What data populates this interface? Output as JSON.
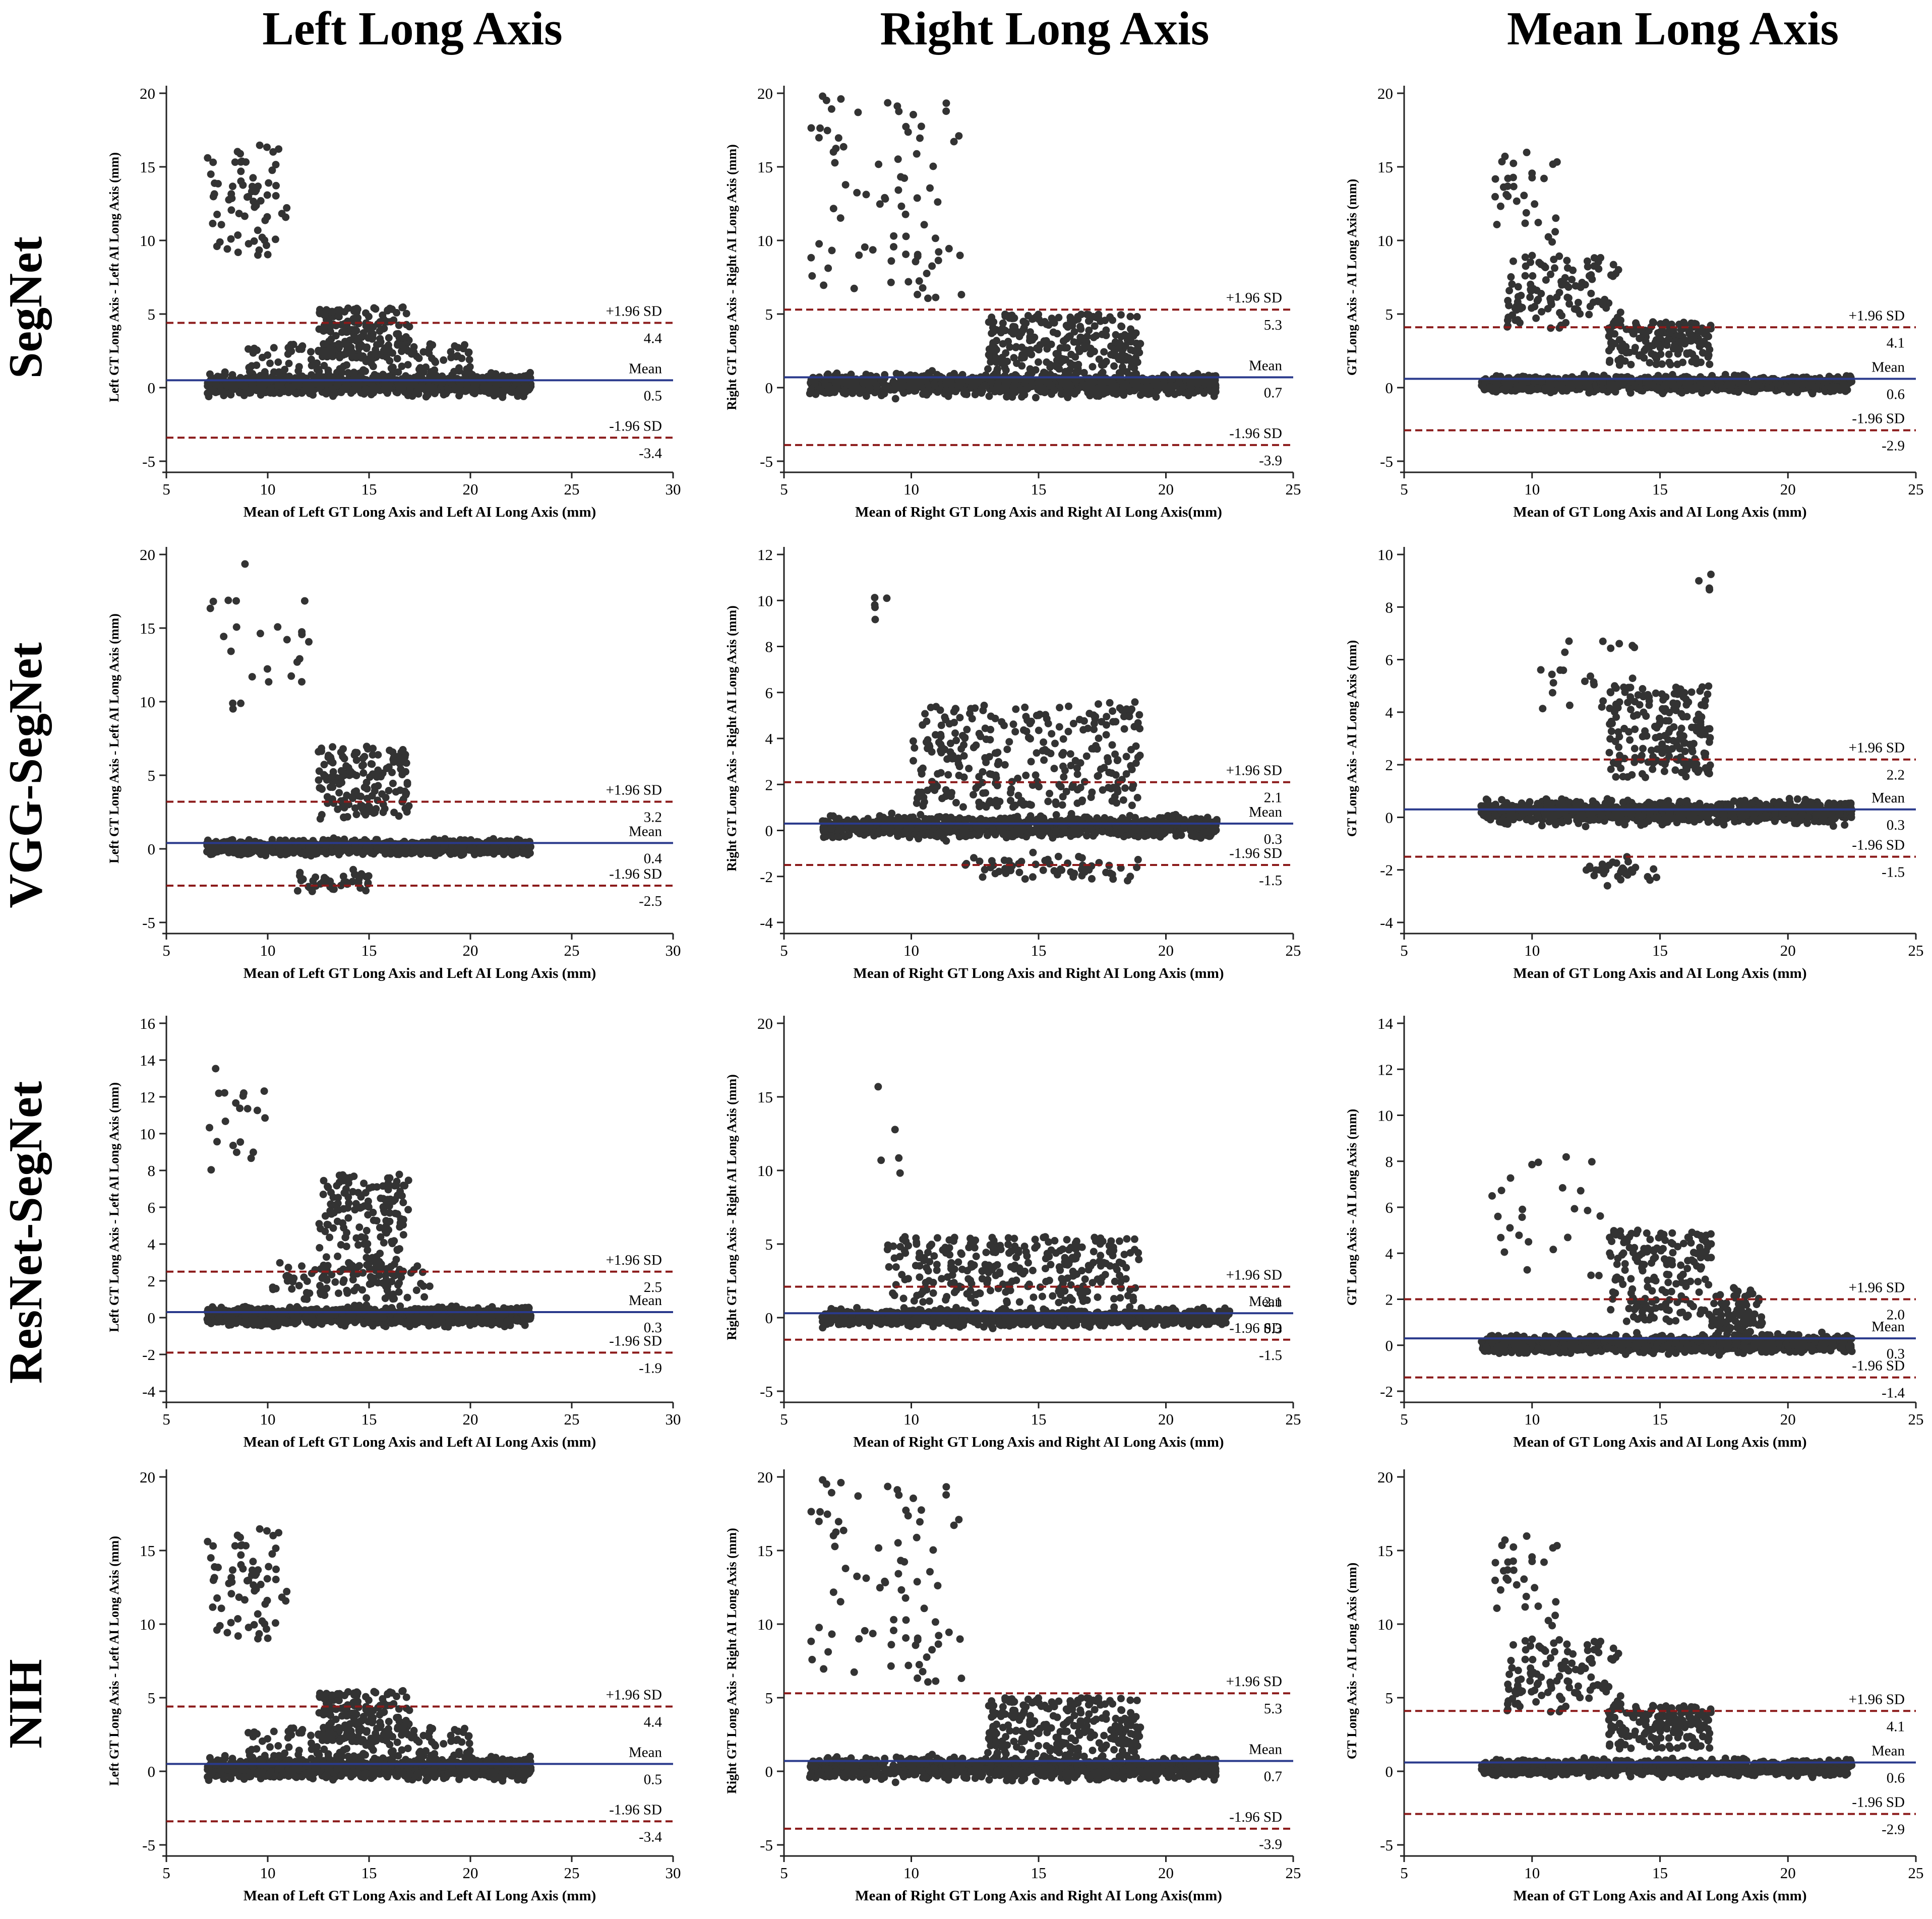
{
  "figure": {
    "column_titles": [
      "Left Long Axis",
      "Right Long Axis",
      "Mean Long Axis"
    ],
    "row_titles": [
      "SegNet",
      "VGG-SegNet",
      "ResNet-SegNet",
      "NIH"
    ]
  },
  "chart_data": [
    {
      "type": "scatter",
      "row": 0,
      "col": 0,
      "title": "",
      "xlabel": "Mean of Left GT Long Axis and Left AI Long Axis (mm)",
      "ylabel": "Left GT Long Axis - Left AI Long Axis (mm)",
      "xlim": [
        5,
        30
      ],
      "ylim": [
        -5,
        20
      ],
      "xticks": [
        5,
        10,
        15,
        20,
        25,
        30
      ],
      "yticks": [
        -5,
        0,
        5,
        10,
        15,
        20
      ],
      "x_range": [
        7,
        23
      ],
      "mean": 0.5,
      "upper_loa": 4.4,
      "lower_loa": -3.4,
      "mean_label": "Mean",
      "upper_label": "+1.96 SD",
      "lower_label": "-1.96 SD",
      "mean_text": "0.5",
      "upper_text": "4.4",
      "lower_text": "-3.4",
      "seed": 11,
      "clusters": [
        {
          "x": [
            7,
            11
          ],
          "y": [
            9,
            16.5
          ],
          "n": 70
        },
        {
          "x": [
            12.5,
            17
          ],
          "y": [
            2,
            5.5
          ],
          "n": 180
        },
        {
          "x": [
            7,
            23
          ],
          "y": [
            -0.8,
            1.2
          ],
          "n": 1100
        },
        {
          "x": [
            9,
            20
          ],
          "y": [
            1,
            3
          ],
          "n": 120
        }
      ]
    },
    {
      "type": "scatter",
      "row": 0,
      "col": 1,
      "title": "",
      "xlabel": "Mean of Right GT Long Axis and Right AI Long Axis(mm)",
      "ylabel": "Right GT Long Axis - Right AI Long Axis (mm)",
      "xlim": [
        5,
        25
      ],
      "ylim": [
        -5,
        20
      ],
      "xticks": [
        5,
        10,
        15,
        20,
        25
      ],
      "yticks": [
        -5,
        0,
        5,
        10,
        15,
        20
      ],
      "x_range": [
        6,
        22.5
      ],
      "mean": 0.7,
      "upper_loa": 5.3,
      "lower_loa": -3.9,
      "mean_label": "Mean",
      "upper_label": "+1.96 SD",
      "lower_label": "-1.96 SD",
      "mean_text": "0.7",
      "upper_text": "5.3",
      "lower_text": "-3.9",
      "seed": 23,
      "clusters": [
        {
          "x": [
            6,
            12
          ],
          "y": [
            6,
            20
          ],
          "n": 80
        },
        {
          "x": [
            13,
            19
          ],
          "y": [
            1,
            5
          ],
          "n": 250
        },
        {
          "x": [
            6,
            22
          ],
          "y": [
            -0.8,
            1.2
          ],
          "n": 1000
        }
      ]
    },
    {
      "type": "scatter",
      "row": 0,
      "col": 2,
      "title": "",
      "xlabel": "Mean of GT Long Axis and AI Long Axis (mm)",
      "ylabel": "GT Long Axis - AI Long Axis (mm)",
      "xlim": [
        5,
        25
      ],
      "ylim": [
        -5,
        20
      ],
      "xticks": [
        5,
        10,
        15,
        20,
        25
      ],
      "yticks": [
        -5,
        0,
        5,
        10,
        15,
        20
      ],
      "x_range": [
        7,
        22.5
      ],
      "mean": 0.6,
      "upper_loa": 4.1,
      "lower_loa": -2.9,
      "mean_label": "Mean",
      "upper_label": "+1.96 SD",
      "lower_label": "-1.96 SD",
      "mean_text": "0.6",
      "upper_text": "4.1",
      "lower_text": "-2.9",
      "seed": 37,
      "clusters": [
        {
          "x": [
            8.5,
            11
          ],
          "y": [
            9,
            16
          ],
          "n": 30
        },
        {
          "x": [
            9,
            13.5
          ],
          "y": [
            4,
            9
          ],
          "n": 120
        },
        {
          "x": [
            13,
            17
          ],
          "y": [
            1.5,
            4.5
          ],
          "n": 160
        },
        {
          "x": [
            8,
            22.5
          ],
          "y": [
            -0.5,
            1
          ],
          "n": 1000
        }
      ]
    },
    {
      "type": "scatter",
      "row": 1,
      "col": 0,
      "title": "",
      "xlabel": "Mean of Left GT Long Axis and Left AI Long Axis (mm)",
      "ylabel": "Left GT Long Axis - Left AI Long Axis (mm)",
      "xlim": [
        5,
        30
      ],
      "ylim": [
        -5,
        20
      ],
      "xticks": [
        5,
        10,
        15,
        20,
        25,
        30
      ],
      "yticks": [
        -5,
        0,
        5,
        10,
        15,
        20
      ],
      "x_range": [
        7,
        23
      ],
      "mean": 0.4,
      "upper_loa": 3.2,
      "lower_loa": -2.5,
      "mean_label": "Mean",
      "upper_label": "+1.96 SD",
      "lower_label": "-1.96 SD",
      "mean_text": "0.4",
      "upper_text": "3.2",
      "lower_text": "-2.5",
      "seed": 41,
      "clusters": [
        {
          "x": [
            7,
            12.5
          ],
          "y": [
            9.5,
            19.8
          ],
          "n": 25
        },
        {
          "x": [
            12.5,
            17
          ],
          "y": [
            2,
            7
          ],
          "n": 160
        },
        {
          "x": [
            11,
            15
          ],
          "y": [
            -3.5,
            -1
          ],
          "n": 40
        },
        {
          "x": [
            7,
            23
          ],
          "y": [
            -0.6,
            0.8
          ],
          "n": 1100
        }
      ]
    },
    {
      "type": "scatter",
      "row": 1,
      "col": 1,
      "title": "",
      "xlabel": "Mean of Right GT Long Axis and Right AI Long Axis (mm)",
      "ylabel": "Right GT Long Axis - Right AI Long Axis (mm)",
      "xlim": [
        5,
        25
      ],
      "ylim": [
        -4,
        12
      ],
      "xticks": [
        5,
        10,
        15,
        20,
        25
      ],
      "yticks": [
        -4,
        -2,
        0,
        2,
        4,
        6,
        8,
        10,
        12
      ],
      "x_range": [
        6.5,
        22
      ],
      "mean": 0.3,
      "upper_loa": 2.1,
      "lower_loa": -1.5,
      "mean_label": "Mean",
      "upper_label": "+1.96 SD",
      "lower_label": "-1.96 SD",
      "mean_text": "0.3",
      "upper_text": "2.1",
      "lower_text": "-1.5",
      "seed": 53,
      "clusters": [
        {
          "x": [
            8.5,
            9.5
          ],
          "y": [
            8,
            10.2
          ],
          "n": 5
        },
        {
          "x": [
            10,
            19
          ],
          "y": [
            1,
            5.6
          ],
          "n": 300
        },
        {
          "x": [
            12,
            19
          ],
          "y": [
            -2.5,
            -0.8
          ],
          "n": 60
        },
        {
          "x": [
            6.5,
            22
          ],
          "y": [
            -0.5,
            0.8
          ],
          "n": 1000
        }
      ]
    },
    {
      "type": "scatter",
      "row": 1,
      "col": 2,
      "title": "",
      "xlabel": "Mean of GT Long Axis and AI Long Axis (mm)",
      "ylabel": "GT Long Axis - AI Long Axis (mm)",
      "xlim": [
        5,
        25
      ],
      "ylim": [
        -4,
        10
      ],
      "xticks": [
        5,
        10,
        15,
        20,
        25
      ],
      "yticks": [
        -4,
        -2,
        0,
        2,
        4,
        6,
        8,
        10
      ],
      "x_range": [
        7.5,
        22.5
      ],
      "mean": 0.3,
      "upper_loa": 2.2,
      "lower_loa": -1.5,
      "mean_label": "Mean",
      "upper_label": "+1.96 SD",
      "lower_label": "-1.96 SD",
      "mean_text": "0.3",
      "upper_text": "2.2",
      "lower_text": "-1.5",
      "seed": 67,
      "clusters": [
        {
          "x": [
            10,
            14
          ],
          "y": [
            4,
            7
          ],
          "n": 25
        },
        {
          "x": [
            13,
            17
          ],
          "y": [
            1.5,
            5
          ],
          "n": 200
        },
        {
          "x": [
            16.5,
            17
          ],
          "y": [
            8.5,
            9.3
          ],
          "n": 4
        },
        {
          "x": [
            12,
            15
          ],
          "y": [
            -3,
            -1
          ],
          "n": 30
        },
        {
          "x": [
            8,
            22.5
          ],
          "y": [
            -0.4,
            0.8
          ],
          "n": 1000
        }
      ]
    },
    {
      "type": "scatter",
      "row": 2,
      "col": 0,
      "title": "",
      "xlabel": "Mean of Left GT Long Axis and Left AI Long Axis (mm)",
      "ylabel": "Left GT Long Axis - Left AI Long Axis (mm)",
      "xlim": [
        5,
        30
      ],
      "ylim": [
        -4,
        16
      ],
      "xticks": [
        5,
        10,
        15,
        20,
        25,
        30
      ],
      "yticks": [
        -4,
        -2,
        0,
        2,
        4,
        6,
        8,
        10,
        12,
        14,
        16
      ],
      "x_range": [
        7,
        23
      ],
      "mean": 0.3,
      "upper_loa": 2.5,
      "lower_loa": -1.9,
      "mean_label": "Mean",
      "upper_label": "+1.96 SD",
      "lower_label": "-1.96 SD",
      "mean_text": "0.3",
      "upper_text": "2.5",
      "lower_text": "-1.9",
      "seed": 71,
      "clusters": [
        {
          "x": [
            7,
            10
          ],
          "y": [
            8,
            14.2
          ],
          "n": 20
        },
        {
          "x": [
            12.5,
            17
          ],
          "y": [
            2,
            7.8
          ],
          "n": 170
        },
        {
          "x": [
            10,
            18
          ],
          "y": [
            1,
            3
          ],
          "n": 90
        },
        {
          "x": [
            7,
            23
          ],
          "y": [
            -0.6,
            0.8
          ],
          "n": 1100
        }
      ]
    },
    {
      "type": "scatter",
      "row": 2,
      "col": 1,
      "title": "",
      "xlabel": "Mean of Right GT Long Axis and Right AI Long Axis (mm)",
      "ylabel": "Right GT Long Axis - Right AI Long Axis (mm)",
      "xlim": [
        5,
        25
      ],
      "ylim": [
        -5,
        20
      ],
      "xticks": [
        5,
        10,
        15,
        20,
        25
      ],
      "yticks": [
        -5,
        0,
        5,
        10,
        15,
        20
      ],
      "x_range": [
        6.5,
        22.5
      ],
      "mean": 0.3,
      "upper_loa": 2.1,
      "lower_loa": -1.5,
      "mean_label": "Mean",
      "upper_label": "+1.96 SD",
      "lower_label": "-1.96 SD",
      "mean_text": "0.3",
      "upper_text": "2.1",
      "lower_text": "-1.5",
      "seed": 83,
      "clusters": [
        {
          "x": [
            8.5,
            10
          ],
          "y": [
            7.5,
            16.5
          ],
          "n": 5
        },
        {
          "x": [
            9,
            19
          ],
          "y": [
            1,
            5.5
          ],
          "n": 300
        },
        {
          "x": [
            6.5,
            22.5
          ],
          "y": [
            -0.8,
            0.8
          ],
          "n": 1000
        }
      ]
    },
    {
      "type": "scatter",
      "row": 2,
      "col": 2,
      "title": "",
      "xlabel": "Mean of GT Long Axis and AI Long Axis (mm)",
      "ylabel": "GT Long Axis - AI Long Axis (mm)",
      "xlim": [
        5,
        25
      ],
      "ylim": [
        -2,
        14
      ],
      "xticks": [
        5,
        10,
        15,
        20,
        25
      ],
      "yticks": [
        -2,
        0,
        2,
        4,
        6,
        8,
        10,
        12,
        14
      ],
      "x_range": [
        7.5,
        22.5
      ],
      "mean": 0.3,
      "upper_loa": 2.0,
      "lower_loa": -1.4,
      "mean_label": "Mean",
      "upper_label": "+1.96 SD",
      "lower_label": "-1.96 SD",
      "mean_text": "0.3",
      "upper_text": "2.0",
      "lower_text": "-1.4",
      "seed": 97,
      "clusters": [
        {
          "x": [
            8,
            13
          ],
          "y": [
            3,
            8.3
          ],
          "n": 25
        },
        {
          "x": [
            13,
            17
          ],
          "y": [
            1,
            5
          ],
          "n": 180
        },
        {
          "x": [
            17,
            19
          ],
          "y": [
            0.5,
            2.5
          ],
          "n": 80
        },
        {
          "x": [
            8,
            22.5
          ],
          "y": [
            -0.5,
            0.6
          ],
          "n": 1000
        }
      ]
    },
    {
      "type": "scatter",
      "row": 3,
      "col": 0,
      "title": "",
      "xlabel": "Mean of Left GT Long Axis and Left AI Long Axis (mm)",
      "ylabel": "Left GT Long Axis - Left AI Long Axis (mm)",
      "xlim": [
        5,
        30
      ],
      "ylim": [
        -5,
        20
      ],
      "xticks": [
        5,
        10,
        15,
        20,
        25,
        30
      ],
      "yticks": [
        -5,
        0,
        5,
        10,
        15,
        20
      ],
      "x_range": [
        7,
        23
      ],
      "mean": 0.5,
      "upper_loa": 4.4,
      "lower_loa": -3.4,
      "mean_label": "Mean",
      "upper_label": "+1.96 SD",
      "lower_label": "-1.96 SD",
      "mean_text": "0.5",
      "upper_text": "4.4",
      "lower_text": "-3.4",
      "seed": 11,
      "clusters": [
        {
          "x": [
            7,
            11
          ],
          "y": [
            9,
            16.5
          ],
          "n": 70
        },
        {
          "x": [
            12.5,
            17
          ],
          "y": [
            2,
            5.5
          ],
          "n": 180
        },
        {
          "x": [
            7,
            23
          ],
          "y": [
            -0.8,
            1.2
          ],
          "n": 1100
        },
        {
          "x": [
            9,
            20
          ],
          "y": [
            1,
            3
          ],
          "n": 120
        }
      ]
    },
    {
      "type": "scatter",
      "row": 3,
      "col": 1,
      "title": "",
      "xlabel": "Mean of Right GT Long Axis and Right AI Long Axis(mm)",
      "ylabel": "Right GT Long Axis - Right AI Long Axis (mm)",
      "xlim": [
        5,
        25
      ],
      "ylim": [
        -5,
        20
      ],
      "xticks": [
        5,
        10,
        15,
        20,
        25
      ],
      "yticks": [
        -5,
        0,
        5,
        10,
        15,
        20
      ],
      "x_range": [
        6,
        22.5
      ],
      "mean": 0.7,
      "upper_loa": 5.3,
      "lower_loa": -3.9,
      "mean_label": "Mean",
      "upper_label": "+1.96 SD",
      "lower_label": "-1.96 SD",
      "mean_text": "0.7",
      "upper_text": "5.3",
      "lower_text": "-3.9",
      "seed": 23,
      "clusters": [
        {
          "x": [
            6,
            12
          ],
          "y": [
            6,
            20
          ],
          "n": 80
        },
        {
          "x": [
            13,
            19
          ],
          "y": [
            1,
            5
          ],
          "n": 250
        },
        {
          "x": [
            6,
            22
          ],
          "y": [
            -0.8,
            1.2
          ],
          "n": 1000
        }
      ]
    },
    {
      "type": "scatter",
      "row": 3,
      "col": 2,
      "title": "",
      "xlabel": "Mean of GT Long Axis and AI Long Axis (mm)",
      "ylabel": "GT Long Axis - AI Long Axis (mm)",
      "xlim": [
        5,
        25
      ],
      "ylim": [
        -5,
        20
      ],
      "xticks": [
        5,
        10,
        15,
        20,
        25
      ],
      "yticks": [
        -5,
        0,
        5,
        10,
        15,
        20
      ],
      "x_range": [
        7,
        22.5
      ],
      "mean": 0.6,
      "upper_loa": 4.1,
      "lower_loa": -2.9,
      "mean_label": "Mean",
      "upper_label": "+1.96 SD",
      "lower_label": "-1.96 SD",
      "mean_text": "0.6",
      "upper_text": "4.1",
      "lower_text": "-2.9",
      "seed": 37,
      "clusters": [
        {
          "x": [
            8.5,
            11
          ],
          "y": [
            9,
            16
          ],
          "n": 30
        },
        {
          "x": [
            9,
            13.5
          ],
          "y": [
            4,
            9
          ],
          "n": 120
        },
        {
          "x": [
            13,
            17
          ],
          "y": [
            1.5,
            4.5
          ],
          "n": 160
        },
        {
          "x": [
            8,
            22.5
          ],
          "y": [
            -0.5,
            1
          ],
          "n": 1000
        }
      ]
    }
  ]
}
